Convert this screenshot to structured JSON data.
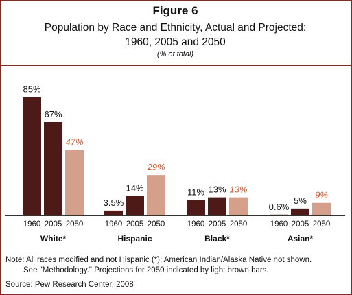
{
  "header": {
    "figure_label": "Figure 6",
    "subtitle_line1": "Population by Race and Ethnicity, Actual and Projected:",
    "subtitle_line2": "1960, 2005 and 2050",
    "unit": "(% of total)"
  },
  "colors": {
    "actual": "#4d1a17",
    "projected": "#d4a08c",
    "projected_label": "#d45a2a",
    "frame": "#7d2d1f"
  },
  "chart_data": {
    "type": "bar",
    "title": "Population by Race and Ethnicity, Actual and Projected: 1960, 2005 and 2050",
    "unit": "% of total",
    "years": [
      "1960",
      "2005",
      "2050"
    ],
    "projected_year": "2050",
    "ylim": [
      0,
      100
    ],
    "groups": [
      {
        "name": "White*",
        "values": [
          85,
          67,
          47
        ],
        "labels": [
          "85%",
          "67%",
          "47%"
        ]
      },
      {
        "name": "Hispanic",
        "values": [
          3.5,
          14,
          29
        ],
        "labels": [
          "3.5%",
          "14%",
          "29%"
        ]
      },
      {
        "name": "Black*",
        "values": [
          11,
          13,
          13
        ],
        "labels": [
          "11%",
          "13%",
          "13%"
        ]
      },
      {
        "name": "Asian*",
        "values": [
          0.6,
          5,
          9
        ],
        "labels": [
          "0.6%",
          "5%",
          "9%"
        ]
      }
    ]
  },
  "footer": {
    "note_line1": "Note: All races modified and not Hispanic (*); American Indian/Alaska Native not shown.",
    "note_line2": "See \"Methodology.\"  Projections for 2050 indicated by light brown bars.",
    "source": "Source: Pew Research Center, 2008"
  }
}
